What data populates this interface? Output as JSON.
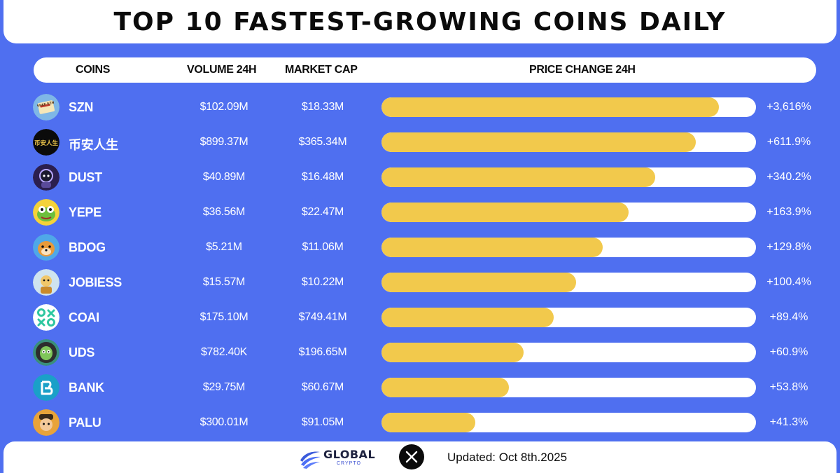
{
  "title": "TOP 10 FASTEST-GROWING COINS DAILY",
  "headers": {
    "coins": "COINS",
    "volume": "VOLUME 24H",
    "market_cap": "MARKET CAP",
    "price_change": "PRICE CHANGE 24H"
  },
  "colors": {
    "background": "#4f6ff0",
    "bar_fill": "#f2c94c",
    "bar_track": "#ffffff"
  },
  "chart_data": {
    "type": "bar",
    "orientation": "horizontal",
    "categories": [
      "SZN",
      "币安人生",
      "DUST",
      "YEPE",
      "BDOG",
      "JOBIESS",
      "COAI",
      "UDS",
      "BANK",
      "PALU"
    ],
    "series": [
      {
        "values": [
          0.9,
          0.84,
          0.73,
          0.66,
          0.59,
          0.52,
          0.46,
          0.38,
          0.34,
          0.25
        ]
      }
    ],
    "value_labels": [
      "+3,616%",
      "+611.9%",
      "+340.2%",
      "+163.9%",
      "+129.8%",
      "+100.4%",
      "+89.4%",
      "+60.9%",
      "+53.8%",
      "+41.3%"
    ],
    "volume_24h": [
      "$102.09M",
      "$899.37M",
      "$40.89M",
      "$36.56M",
      "$5.21M",
      "$15.57M",
      "$175.10M",
      "$782.40K",
      "$29.75M",
      "$300.01M"
    ],
    "market_cap": [
      "$18.33M",
      "$365.34M",
      "$16.48M",
      "$22.47M",
      "$11.06M",
      "$10.22M",
      "$749.41M",
      "$196.65M",
      "$60.67M",
      "$91.05M"
    ],
    "bar_scale": "ranked, not proportional",
    "grid": false
  },
  "coins": [
    {
      "name": "SZN",
      "icon": "szn-ticket-icon",
      "icon_text": "SHEE SZN",
      "icon_bg": "#7fb7e6"
    },
    {
      "name": "币安人生",
      "icon": "binance-life-icon",
      "icon_text": "币安人生",
      "icon_bg": "#0b0b0b"
    },
    {
      "name": "DUST",
      "icon": "dust-astronaut-icon",
      "icon_bg": "#2b1f4f"
    },
    {
      "name": "YEPE",
      "icon": "yepe-frog-icon",
      "icon_bg": "#f4d23a"
    },
    {
      "name": "BDOG",
      "icon": "bdog-dog-icon",
      "icon_bg": "#4fa8e8"
    },
    {
      "name": "JOBIESS",
      "icon": "jobiess-character-icon",
      "icon_bg": "#cfe3ef"
    },
    {
      "name": "COAI",
      "icon": "coai-logo-icon",
      "icon_bg": "#ffffff"
    },
    {
      "name": "UDS",
      "icon": "uds-zombie-icon",
      "icon_bg": "#3a8f7a"
    },
    {
      "name": "BANK",
      "icon": "bank-logo-icon",
      "icon_bg": "#1aa0c8"
    },
    {
      "name": "PALU",
      "icon": "palu-character-icon",
      "icon_bg": "#e8a33a"
    }
  ],
  "footer": {
    "brand": "GLOBAL",
    "brand_sub": "CRYPTO",
    "x_icon": "x-logo-icon",
    "updated": "Updated: Oct 8th.2025"
  }
}
